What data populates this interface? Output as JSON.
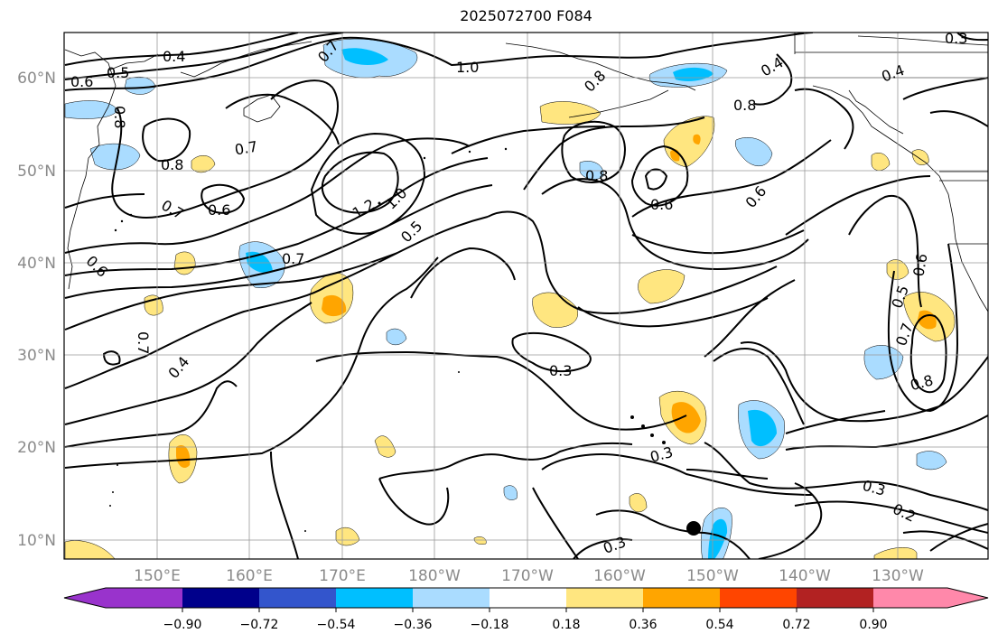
{
  "title": "2025072700 F084",
  "lat_labels": [
    "60°N",
    "50°N",
    "40°N",
    "30°N",
    "20°N",
    "10°N"
  ],
  "lon_labels": [
    "150°E",
    "160°E",
    "170°E",
    "180°W",
    "170°W",
    "160°W",
    "150°W",
    "140°W",
    "130°W"
  ],
  "colorbar": {
    "tick_labels": [
      "−0.90",
      "−0.72",
      "−0.54",
      "−0.36",
      "−0.18",
      "0.18",
      "0.36",
      "0.54",
      "0.72",
      "0.90"
    ],
    "colors": [
      "#9933cc",
      "#00008b",
      "#3355cc",
      "#00bfff",
      "#aadcff",
      "#ffffff",
      "#ffe680",
      "#ffa500",
      "#ff4500",
      "#b22222",
      "#ff88aa"
    ]
  },
  "contour_labels": [
    "0.4",
    "0.5",
    "0.6",
    "0.8",
    "0.7",
    "1.0",
    "0.8",
    "0.8",
    "0.4",
    "0.4",
    "0.3",
    "0.7",
    "0.8",
    "0.7",
    "0.8",
    "0.6",
    "0.6",
    "0.6",
    "1.2",
    "1.0",
    "0.5",
    "0.7",
    "0.6",
    "0.7",
    "0.4",
    "0.3",
    "0.3",
    "0.3",
    "0.2",
    "0.3",
    "0.8",
    "0.7",
    "0.5",
    "0.6"
  ],
  "fill_colors": {
    "light_blue": "#aadcff",
    "cyan": "#00bfff",
    "yellow": "#ffe680",
    "orange": "#ffa500"
  }
}
